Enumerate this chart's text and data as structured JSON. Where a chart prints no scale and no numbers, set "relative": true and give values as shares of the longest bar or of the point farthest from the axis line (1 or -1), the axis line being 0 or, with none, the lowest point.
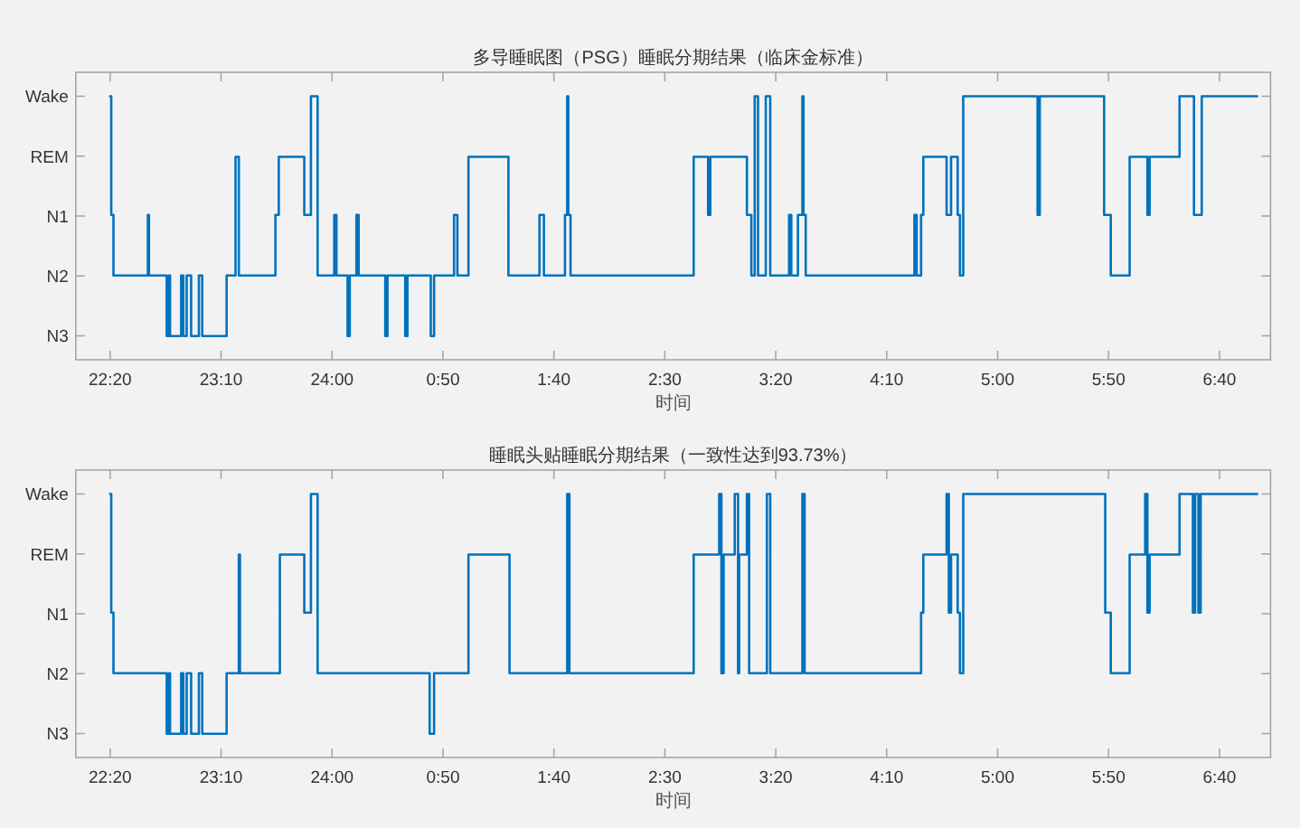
{
  "chart_data": [
    {
      "type": "step",
      "relative": true,
      "title": "多导睡眠图（PSG）睡眠分期结果（临床金标准）",
      "xlabel": "时间",
      "color": "#0072bd",
      "y_categories": [
        "Wake",
        "REM",
        "N1",
        "N2",
        "N3"
      ],
      "x": [
        "2000-01-01T22:20:00",
        "2000-01-01T22:20:30",
        "2000-01-01T22:21:30",
        "2000-01-01T22:37:00",
        "2000-01-01T22:37:30",
        "2000-01-01T22:45:30",
        "2000-01-01T22:46:30",
        "2000-01-01T22:47:00",
        "2000-01-01T22:52:00",
        "2000-01-01T22:53:00",
        "2000-01-01T22:54:30",
        "2000-01-01T22:56:30",
        "2000-01-01T23:00:00",
        "2000-01-01T23:01:30",
        "2000-01-01T23:12:30",
        "2000-01-01T23:16:30",
        "2000-01-01T23:18:00",
        "2000-01-01T23:34:30",
        "2000-01-01T23:36:00",
        "2000-01-01T23:47:30",
        "2000-01-01T23:50:30",
        "2000-01-01T23:53:30",
        "2000-01-02T00:01:00",
        "2000-01-02T00:02:00",
        "2000-01-02T00:07:00",
        "2000-01-02T00:08:00",
        "2000-01-02T00:11:00",
        "2000-01-02T00:12:00",
        "2000-01-02T00:24:00",
        "2000-01-02T00:25:00",
        "2000-01-02T00:33:00",
        "2000-01-02T00:34:00",
        "2000-01-02T00:44:30",
        "2000-01-02T00:46:00",
        "2000-01-02T00:55:00",
        "2000-01-02T00:56:30",
        "2000-01-02T01:01:30",
        "2000-01-02T01:19:30",
        "2000-01-02T01:33:30",
        "2000-01-02T01:35:30",
        "2000-01-02T01:45:00",
        "2000-01-02T01:46:00",
        "2000-01-02T01:46:30",
        "2000-01-02T01:47:30",
        "2000-01-02T02:43:00",
        "2000-01-02T02:49:30",
        "2000-01-02T02:50:30",
        "2000-01-02T03:07:00",
        "2000-01-02T03:09:00",
        "2000-01-02T03:10:30",
        "2000-01-02T03:12:00",
        "2000-01-02T03:15:30",
        "2000-01-02T03:17:30",
        "2000-01-02T03:26:00",
        "2000-01-02T03:27:00",
        "2000-01-02T03:30:00",
        "2000-01-02T03:32:00",
        "2000-01-02T03:32:30",
        "2000-01-02T03:33:30",
        "2000-01-02T04:22:30",
        "2000-01-02T04:23:30",
        "2000-01-02T04:25:30",
        "2000-01-02T04:26:30",
        "2000-01-02T04:37:00",
        "2000-01-02T04:39:00",
        "2000-01-02T04:42:00",
        "2000-01-02T04:43:00",
        "2000-01-02T04:44:30",
        "2000-01-02T05:18:00",
        "2000-01-02T05:19:00",
        "2000-01-02T05:48:00",
        "2000-01-02T05:51:00",
        "2000-01-02T05:59:30",
        "2000-01-02T06:07:30",
        "2000-01-02T06:08:30",
        "2000-01-02T06:22:00",
        "2000-01-02T06:28:30",
        "2000-01-02T06:32:00",
        "2000-01-02T06:57:00"
      ],
      "values": [
        1,
        0.55,
        0.32,
        0.55,
        0.32,
        0.09,
        0.32,
        0.09,
        0.32,
        0.09,
        0.32,
        0.09,
        0.32,
        0.09,
        0.32,
        0.77,
        0.32,
        0.55,
        0.77,
        0.55,
        1,
        0.32,
        0.55,
        0.32,
        0.09,
        0.32,
        0.55,
        0.32,
        0.09,
        0.32,
        0.09,
        0.32,
        0.09,
        0.32,
        0.55,
        0.32,
        0.77,
        0.32,
        0.55,
        0.32,
        0.55,
        1,
        0.55,
        0.32,
        0.77,
        0.55,
        0.77,
        0.55,
        0.32,
        1,
        0.32,
        1,
        0.32,
        0.55,
        0.32,
        0.55,
        1,
        0.55,
        0.32,
        0.55,
        0.32,
        0.55,
        0.77,
        0.55,
        0.77,
        0.55,
        0.32,
        1,
        0.55,
        1,
        0.55,
        0.32,
        0.77,
        0.55,
        0.77,
        1,
        0.55,
        1,
        1
      ],
      "xlim": [
        "2000-01-01T22:04:30",
        "2000-01-02T07:03"
      ],
      "xticks": [
        {
          "value": "2000-01-01T22:20",
          "label": "22:20"
        },
        {
          "value": "2000-01-01T23:10",
          "label": "23:10"
        },
        {
          "value": "2000-01-02T00:00",
          "label": "24:00"
        },
        {
          "value": "2000-01-02T00:50",
          "label": "0:50"
        },
        {
          "value": "2000-01-02T01:40",
          "label": "1:40"
        },
        {
          "value": "2000-01-02T02:30",
          "label": "2:30"
        },
        {
          "value": "2000-01-02T03:20",
          "label": "3:20"
        },
        {
          "value": "2000-01-02T04:10",
          "label": "4:10"
        },
        {
          "value": "2000-01-02T05:00",
          "label": "5:00"
        },
        {
          "value": "2000-01-02T05:50",
          "label": "5:50"
        },
        {
          "value": "2000-01-02T06:40",
          "label": "6:40"
        }
      ]
    },
    {
      "type": "step",
      "relative": true,
      "title": "睡眠头贴睡眠分期结果（一致性达到93.73%）",
      "xlabel": "时间",
      "color": "#0072bd",
      "y_categories": [
        "Wake",
        "REM",
        "N1",
        "N2",
        "N3"
      ],
      "x": [
        "2000-01-01T22:20:00",
        "2000-01-01T22:20:30",
        "2000-01-01T22:21:30",
        "2000-01-01T22:45:30",
        "2000-01-01T22:46:30",
        "2000-01-01T22:47:00",
        "2000-01-01T22:52:00",
        "2000-01-01T22:53:00",
        "2000-01-01T22:54:30",
        "2000-01-01T22:56:30",
        "2000-01-01T23:00:00",
        "2000-01-01T23:01:30",
        "2000-01-01T23:12:30",
        "2000-01-01T23:18:00",
        "2000-01-01T23:18:30",
        "2000-01-01T23:36:30",
        "2000-01-01T23:47:30",
        "2000-01-01T23:50:30",
        "2000-01-01T23:53:30",
        "2000-01-02T00:44:00",
        "2000-01-02T00:46:00",
        "2000-01-02T01:01:30",
        "2000-01-02T01:20:00",
        "2000-01-02T01:46:00",
        "2000-01-02T01:47:00",
        "2000-01-02T02:43:00",
        "2000-01-02T02:54:30",
        "2000-01-02T02:55:30",
        "2000-01-02T02:56:30",
        "2000-01-02T03:01:30",
        "2000-01-02T03:03:00",
        "2000-01-02T03:03:30",
        "2000-01-02T03:07:00",
        "2000-01-02T03:08:00",
        "2000-01-02T03:16:00",
        "2000-01-02T03:17:30",
        "2000-01-02T03:32:00",
        "2000-01-02T03:33:00",
        "2000-01-02T04:25:30",
        "2000-01-02T04:26:30",
        "2000-01-02T04:37:00",
        "2000-01-02T04:38:00",
        "2000-01-02T04:39:00",
        "2000-01-02T04:42:00",
        "2000-01-02T04:43:00",
        "2000-01-02T04:44:30",
        "2000-01-02T05:48:30",
        "2000-01-02T05:51:00",
        "2000-01-02T05:59:30",
        "2000-01-02T06:06:30",
        "2000-01-02T06:07:30",
        "2000-01-02T06:08:30",
        "2000-01-02T06:22:00",
        "2000-01-02T06:28:00",
        "2000-01-02T06:29:00",
        "2000-01-02T06:30:30",
        "2000-01-02T06:31:30",
        "2000-01-02T06:57:00"
      ],
      "values": [
        1,
        0.55,
        0.32,
        0.09,
        0.32,
        0.09,
        0.32,
        0.09,
        0.32,
        0.09,
        0.32,
        0.09,
        0.32,
        0.77,
        0.32,
        0.77,
        0.55,
        1,
        0.32,
        0.09,
        0.32,
        0.77,
        0.32,
        1,
        0.32,
        0.77,
        1,
        0.32,
        0.77,
        1,
        0.32,
        0.77,
        1,
        0.32,
        1,
        0.32,
        1,
        0.32,
        0.55,
        0.77,
        1,
        0.55,
        0.77,
        0.55,
        0.32,
        1,
        0.55,
        0.32,
        0.77,
        1,
        0.55,
        0.77,
        1,
        0.55,
        1,
        0.55,
        1,
        1
      ],
      "xlim": [
        "2000-01-01T22:04:30",
        "2000-01-02T07:03"
      ],
      "xticks": [
        {
          "value": "2000-01-01T22:20",
          "label": "22:20"
        },
        {
          "value": "2000-01-01T23:10",
          "label": "23:10"
        },
        {
          "value": "2000-01-02T00:00",
          "label": "24:00"
        },
        {
          "value": "2000-01-02T00:50",
          "label": "0:50"
        },
        {
          "value": "2000-01-02T01:40",
          "label": "1:40"
        },
        {
          "value": "2000-01-02T02:30",
          "label": "2:30"
        },
        {
          "value": "2000-01-02T03:20",
          "label": "3:20"
        },
        {
          "value": "2000-01-02T04:10",
          "label": "4:10"
        },
        {
          "value": "2000-01-02T05:00",
          "label": "5:00"
        },
        {
          "value": "2000-01-02T05:50",
          "label": "5:50"
        },
        {
          "value": "2000-01-02T06:40",
          "label": "6:40"
        }
      ]
    }
  ]
}
